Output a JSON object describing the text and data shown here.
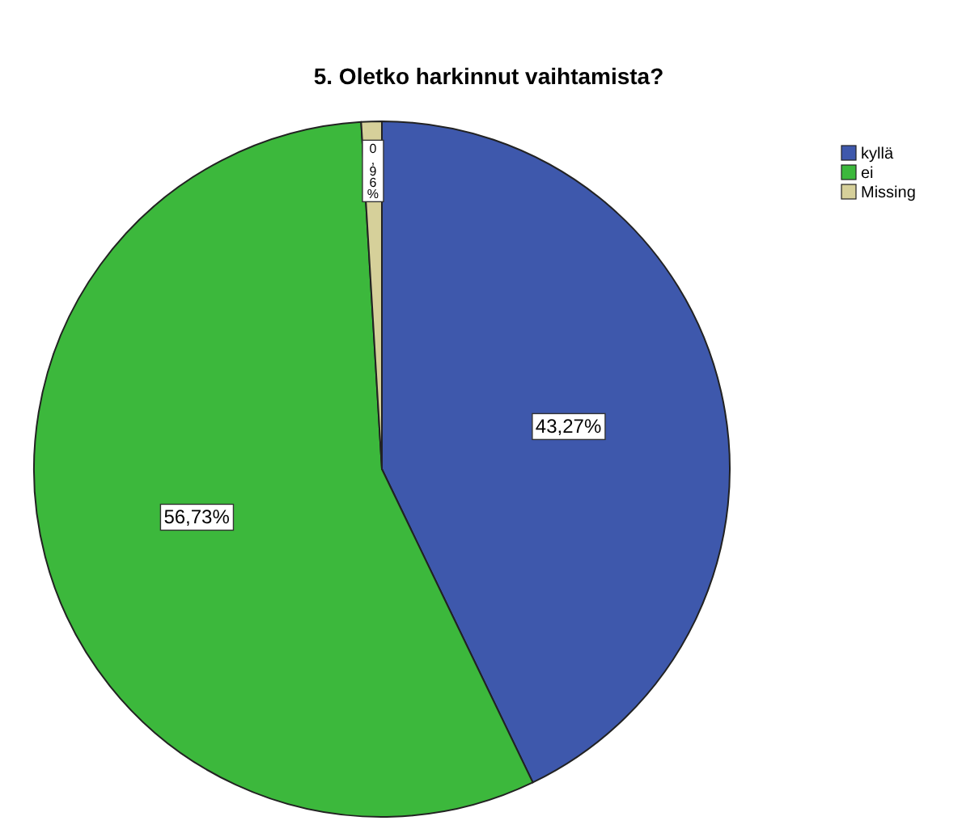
{
  "chart_data": {
    "type": "pie",
    "title": "5. Oletko harkinnut vaihtamista?",
    "categories": [
      "kyllä",
      "ei",
      "Missing"
    ],
    "values": [
      43.27,
      56.73,
      0.96
    ],
    "colors": [
      "#3e58ac",
      "#3cb83c",
      "#d6d09a"
    ],
    "value_labels": [
      "43,27%",
      "56,73%",
      "0,96%"
    ],
    "legend": "top right"
  }
}
